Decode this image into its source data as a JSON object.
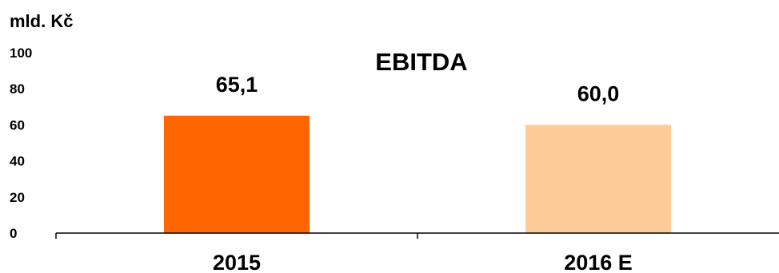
{
  "chart_data": {
    "type": "bar",
    "title": "EBITDA",
    "unit_label": "mld. Kč",
    "categories": [
      "2015",
      "2016 E"
    ],
    "values": [
      65.1,
      60.0
    ],
    "data_labels": [
      "65,1",
      "60,0"
    ],
    "bar_colors": [
      "#ff6600",
      "#fdcb98"
    ],
    "ylim": [
      0,
      100
    ],
    "yticks": [
      0,
      20,
      40,
      60,
      80,
      100
    ],
    "ytick_labels": [
      "0",
      "20",
      "40",
      "60",
      "80",
      "100"
    ],
    "xlabel": "",
    "ylabel": "",
    "grid": false,
    "legend": "none"
  }
}
